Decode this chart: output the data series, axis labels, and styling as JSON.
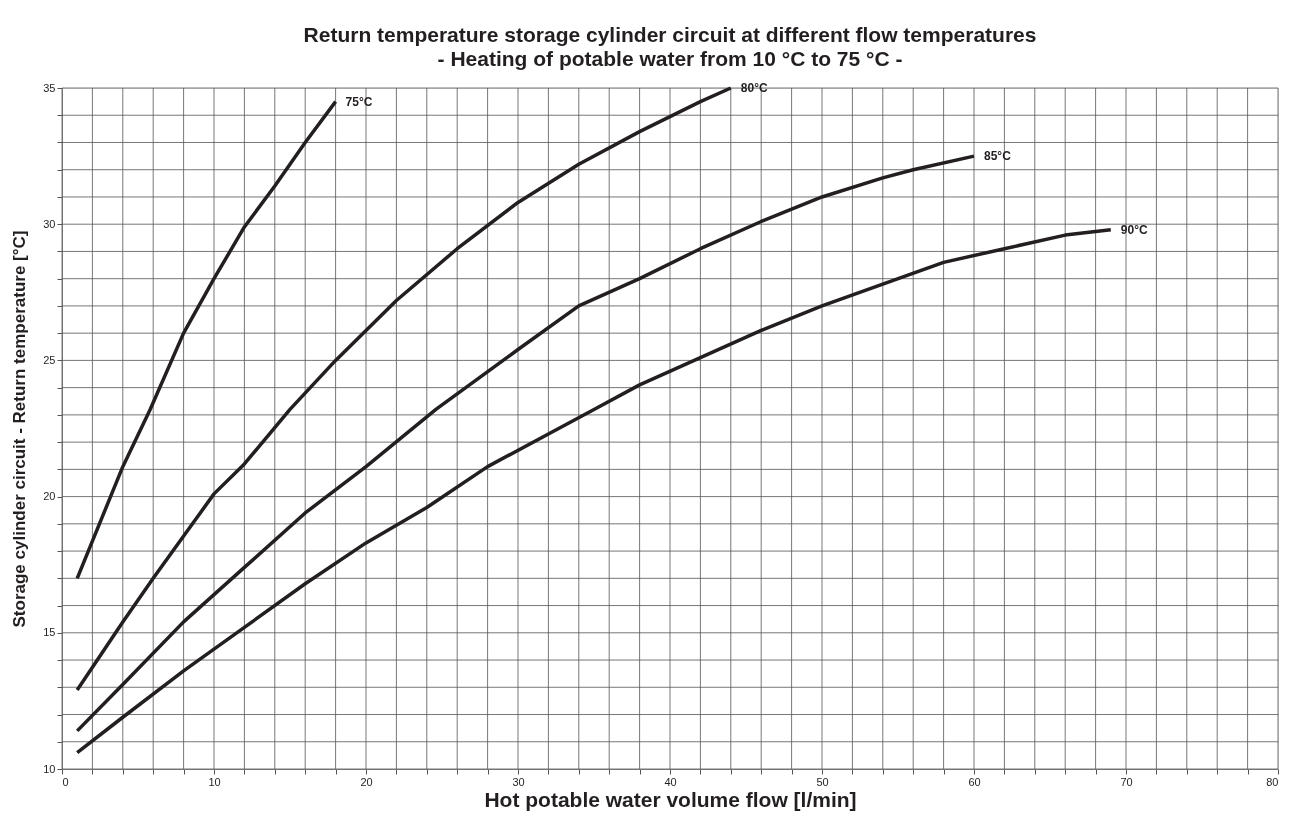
{
  "chart_data": {
    "type": "line",
    "title": "Return temperature storage cylinder circuit at different flow temperatures",
    "subtitle": "- Heating of potable water from 10 °C to 75 °C -",
    "xlabel": "Hot potable water volume flow [l/min]",
    "ylabel": "Storage cylinder circuit - Return temperature [°C]",
    "series": [
      {
        "name": "75°C",
        "color": "#231f20",
        "x": [
          1,
          4,
          5.8,
          8,
          10,
          12,
          14,
          16,
          18
        ],
        "values": [
          17.0,
          21.1,
          23.2,
          26.0,
          28.0,
          29.9,
          31.4,
          33.0,
          34.5
        ]
      },
      {
        "name": "80°C",
        "color": "#231f20",
        "x": [
          1,
          4,
          6,
          10,
          12,
          15,
          18,
          22,
          26,
          30,
          34,
          38,
          42,
          44
        ],
        "values": [
          12.9,
          15.4,
          17.0,
          20.1,
          21.2,
          23.2,
          25.0,
          27.2,
          29.1,
          30.8,
          32.2,
          33.4,
          34.5,
          35.0
        ]
      },
      {
        "name": "85°C",
        "color": "#231f20",
        "x": [
          1,
          4,
          8,
          12,
          16,
          20,
          24.6,
          30,
          34,
          38,
          42,
          46,
          50,
          54,
          56,
          60
        ],
        "values": [
          11.4,
          13.1,
          15.4,
          17.4,
          19.4,
          21.1,
          23.2,
          25.4,
          27.0,
          28.0,
          29.1,
          30.1,
          31.0,
          31.7,
          32.0,
          32.5
        ]
      },
      {
        "name": "90°C",
        "color": "#231f20",
        "x": [
          1,
          4,
          8,
          12,
          16,
          20,
          24,
          28,
          32,
          35,
          38,
          42,
          46,
          50,
          54,
          58,
          62,
          66,
          69
        ],
        "values": [
          10.6,
          11.9,
          13.6,
          15.2,
          16.8,
          18.3,
          19.6,
          21.1,
          22.3,
          23.2,
          24.1,
          25.1,
          26.1,
          27.0,
          27.8,
          28.6,
          29.1,
          29.6,
          29.8
        ]
      }
    ],
    "xlim": [
      0,
      80
    ],
    "ylim": [
      10,
      35
    ],
    "xticks": [
      0,
      {
        "value": 2,
        "label": null
      },
      {
        "value": 4,
        "label": null
      },
      {
        "value": 6,
        "label": null
      },
      {
        "value": 8,
        "label": null
      },
      10,
      {
        "value": 12,
        "label": null
      },
      {
        "value": 14,
        "label": null
      },
      {
        "value": 16,
        "label": null
      },
      {
        "value": 18,
        "label": null
      },
      20,
      {
        "value": 22,
        "label": null
      },
      {
        "value": 24,
        "label": null
      },
      {
        "value": 26,
        "label": null
      },
      {
        "value": 28,
        "label": null
      },
      30,
      {
        "value": 32,
        "label": null
      },
      {
        "value": 34,
        "label": null
      },
      {
        "value": 36,
        "label": null
      },
      {
        "value": 38,
        "label": null
      },
      40,
      {
        "value": 42,
        "label": null
      },
      {
        "value": 44,
        "label": null
      },
      {
        "value": 46,
        "label": null
      },
      {
        "value": 48,
        "label": null
      },
      50,
      {
        "value": 52,
        "label": null
      },
      {
        "value": 54,
        "label": null
      },
      {
        "value": 56,
        "label": null
      },
      {
        "value": 58,
        "label": null
      },
      60,
      {
        "value": 62,
        "label": null
      },
      {
        "value": 64,
        "label": null
      },
      {
        "value": 66,
        "label": null
      },
      {
        "value": 68,
        "label": null
      },
      70,
      {
        "value": 72,
        "label": null
      },
      {
        "value": 74,
        "label": null
      },
      {
        "value": 76,
        "label": null
      },
      {
        "value": 78,
        "label": null
      },
      80
    ],
    "yticks": [
      10,
      {
        "value": 11,
        "label": null
      },
      {
        "value": 12,
        "label": null
      },
      {
        "value": 13,
        "label": null
      },
      {
        "value": 14,
        "label": null
      },
      15,
      {
        "value": 16,
        "label": null
      },
      {
        "value": 17,
        "label": null
      },
      {
        "value": 18,
        "label": null
      },
      {
        "value": 19,
        "label": null
      },
      20,
      {
        "value": 21,
        "label": null
      },
      {
        "value": 22,
        "label": null
      },
      {
        "value": 23,
        "label": null
      },
      {
        "value": 24,
        "label": null
      },
      25,
      {
        "value": 26,
        "label": null
      },
      {
        "value": 27,
        "label": null
      },
      {
        "value": 28,
        "label": null
      },
      {
        "value": 29,
        "label": null
      },
      30,
      {
        "value": 31,
        "label": null
      },
      {
        "value": 32,
        "label": null
      },
      {
        "value": 33,
        "label": null
      },
      {
        "value": 34,
        "label": null
      },
      35
    ],
    "grid": true,
    "legend": false,
    "marker": "none",
    "line_style": "solid"
  }
}
